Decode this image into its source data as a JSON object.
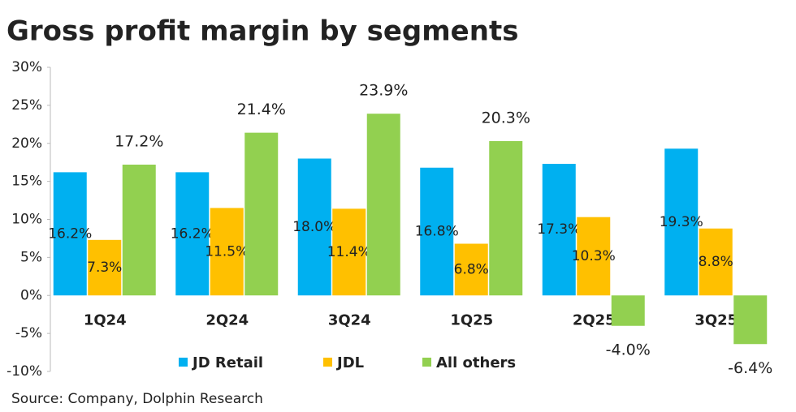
{
  "chart_data": {
    "type": "bar",
    "title": "Gross profit margin by segments",
    "source": "Source:  Company,  Dolphin Research",
    "categories": [
      "1Q24",
      "2Q24",
      "3Q24",
      "1Q25",
      "2Q25",
      "3Q25"
    ],
    "series": [
      {
        "name": "JD Retail",
        "color": "#00b0f0",
        "values": [
          16.2,
          16.2,
          18.0,
          16.8,
          17.3,
          19.3
        ],
        "value_labels": [
          "16.2%",
          "16.2%",
          "18.0%",
          "16.8%",
          "17.3%",
          "19.3%"
        ]
      },
      {
        "name": "JDL",
        "color": "#ffc000",
        "values": [
          7.3,
          11.5,
          11.4,
          6.8,
          10.3,
          8.8
        ],
        "value_labels": [
          "7.3%",
          "11.5%",
          "11.4%",
          "6.8%",
          "10.3%",
          "8.8%"
        ]
      },
      {
        "name": "All others",
        "color": "#92d050",
        "values": [
          17.2,
          21.4,
          23.9,
          20.3,
          -4.0,
          -6.4
        ],
        "value_labels": [
          "17.2%",
          "21.4%",
          "23.9%",
          "20.3%",
          "-4.0%",
          "-6.4%"
        ]
      }
    ],
    "ylim": [
      -10,
      30
    ],
    "yticks": [
      {
        "value": -10,
        "label": "-10%"
      },
      {
        "value": -5,
        "label": "-5%"
      },
      {
        "value": 0,
        "label": "0%"
      },
      {
        "value": 5,
        "label": "5%"
      },
      {
        "value": 10,
        "label": "10%"
      },
      {
        "value": 15,
        "label": "15%"
      },
      {
        "value": 20,
        "label": "20%"
      },
      {
        "value": 25,
        "label": "25%"
      },
      {
        "value": 30,
        "label": "30%"
      }
    ],
    "legend": "bottom"
  }
}
